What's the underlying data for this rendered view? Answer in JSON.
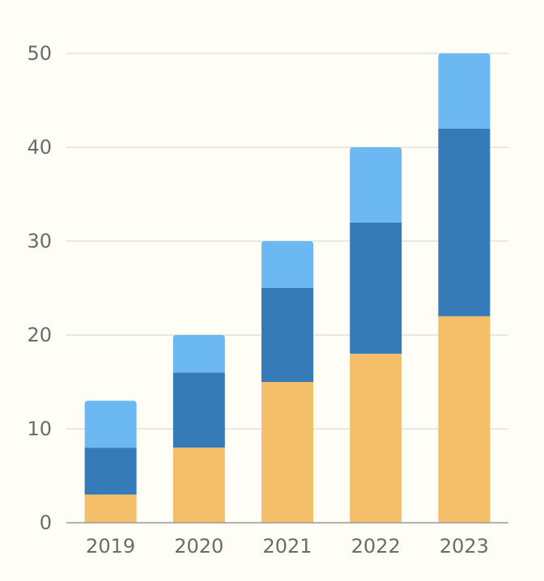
{
  "chart_data": {
    "type": "bar",
    "stacked": true,
    "categories": [
      "2019",
      "2020",
      "2021",
      "2022",
      "2023"
    ],
    "series": [
      {
        "values": [
          3,
          8,
          15,
          18,
          22
        ],
        "color": "#f5bf6a"
      },
      {
        "values": [
          5,
          8,
          10,
          14,
          20
        ],
        "color": "#357bb8"
      },
      {
        "values": [
          5,
          4,
          5,
          8,
          8
        ],
        "color": "#6cb8f2"
      }
    ],
    "yticks": [
      0,
      10,
      20,
      30,
      40,
      50
    ],
    "ylim": [
      0,
      50
    ],
    "grid": true,
    "legend": "none",
    "title": "",
    "xlabel": "",
    "ylabel": ""
  },
  "colors": {
    "background": "#fefef6",
    "grid": "#d2d2d2",
    "axis": "#9a9a9a",
    "tick_text": "#6b6b6b"
  }
}
